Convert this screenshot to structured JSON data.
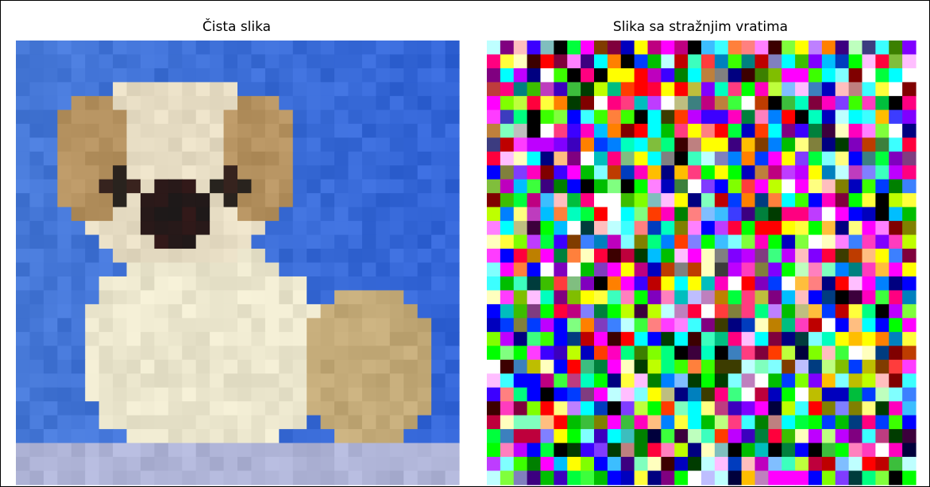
{
  "panels": [
    {
      "title": "Čista slika"
    },
    {
      "title": "Slika sa stražnjim vratima"
    }
  ]
}
